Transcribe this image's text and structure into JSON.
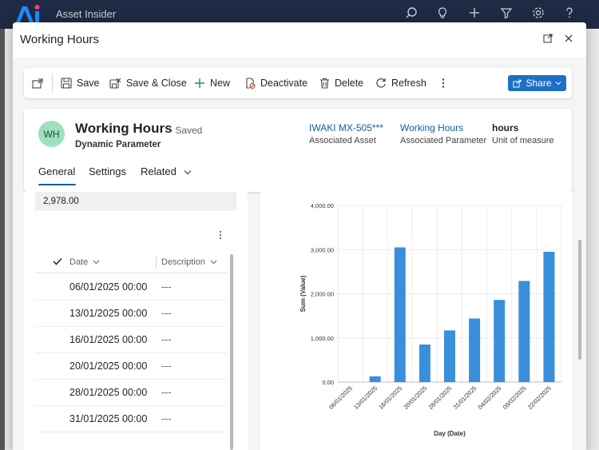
{
  "app": {
    "title": "Asset Insider"
  },
  "modal": {
    "title": "Working Hours"
  },
  "toolbar": {
    "save": "Save",
    "save_close": "Save & Close",
    "new": "New",
    "deactivate": "Deactivate",
    "delete": "Delete",
    "refresh": "Refresh",
    "share": "Share"
  },
  "record": {
    "avatar": "WH",
    "title": "Working Hours",
    "saved_status": "- Saved",
    "entity": "Dynamic Parameter",
    "header_fields": [
      {
        "value": "IWAKI MX-505***",
        "label": "Associated Asset"
      },
      {
        "value": "Working Hours",
        "label": "Associated Parameter"
      },
      {
        "value": "hours",
        "label": "Unit of measure"
      }
    ],
    "tabs": [
      "General",
      "Settings",
      "Related"
    ]
  },
  "field": {
    "value": "2,978.00"
  },
  "grid": {
    "columns": {
      "date": "Date",
      "description": "Description"
    },
    "rows": [
      {
        "date": "06/01/2025 00:00",
        "description": "---"
      },
      {
        "date": "13/01/2025 00:00",
        "description": "---"
      },
      {
        "date": "16/01/2025 00:00",
        "description": "---"
      },
      {
        "date": "20/01/2025 00:00",
        "description": "---"
      },
      {
        "date": "28/01/2025 00:00",
        "description": "---"
      },
      {
        "date": "31/01/2025 00:00",
        "description": "---"
      }
    ]
  },
  "chart_data": {
    "type": "bar",
    "categories": [
      "06/01/2025",
      "13/01/2025",
      "16/01/2025",
      "20/01/2025",
      "28/01/2025",
      "31/01/2025",
      "04/02/2025",
      "09/02/2025",
      "22/02/2025"
    ],
    "values": [
      0,
      130,
      3050,
      850,
      1170,
      1440,
      1860,
      2290,
      2950
    ],
    "xlabel": "Day (Date)",
    "ylabel": "Sum (Value)",
    "ylim": [
      0,
      4000
    ],
    "yticks": [
      "0.00",
      "1,000.00",
      "2,000.00",
      "3,000.00",
      "4,000.00"
    ],
    "ytick_values": [
      0,
      1000,
      2000,
      3000,
      4000
    ],
    "bar_color": "#3a8fdc",
    "grid": true
  },
  "colors": {
    "accent": "#115ea3",
    "share_button": "#1e6fc8",
    "avatar_bg": "#9fe0bf"
  }
}
